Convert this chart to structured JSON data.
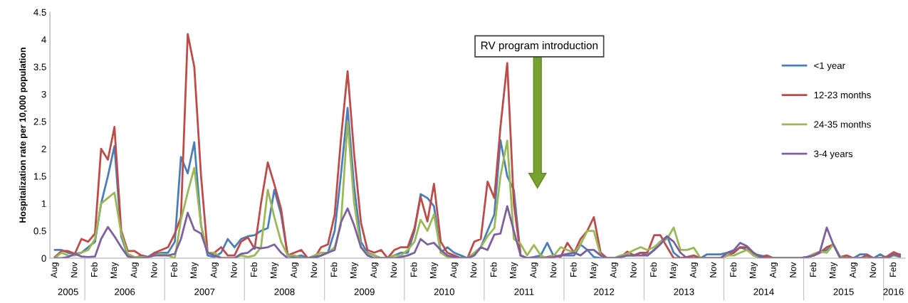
{
  "chart_data": {
    "type": "line",
    "ylabel": "Hospitalization rate per 10,000 population",
    "x": [
      "2005-08",
      "2005-09",
      "2005-10",
      "2005-11",
      "2005-12",
      "2006-01",
      "2006-02",
      "2006-03",
      "2006-04",
      "2006-05",
      "2006-06",
      "2006-07",
      "2006-08",
      "2006-09",
      "2006-10",
      "2006-11",
      "2006-12",
      "2007-01",
      "2007-02",
      "2007-03",
      "2007-04",
      "2007-05",
      "2007-06",
      "2007-07",
      "2007-08",
      "2007-09",
      "2007-10",
      "2007-11",
      "2007-12",
      "2008-01",
      "2008-02",
      "2008-03",
      "2008-04",
      "2008-05",
      "2008-06",
      "2008-07",
      "2008-08",
      "2008-09",
      "2008-10",
      "2008-11",
      "2008-12",
      "2009-01",
      "2009-02",
      "2009-03",
      "2009-04",
      "2009-05",
      "2009-06",
      "2009-07",
      "2009-08",
      "2009-09",
      "2009-10",
      "2009-11",
      "2009-12",
      "2010-01",
      "2010-02",
      "2010-03",
      "2010-04",
      "2010-05",
      "2010-06",
      "2010-07",
      "2010-08",
      "2010-09",
      "2010-10",
      "2010-11",
      "2010-12",
      "2011-01",
      "2011-02",
      "2011-03",
      "2011-04",
      "2011-05",
      "2011-06",
      "2011-07",
      "2011-08",
      "2011-09",
      "2011-10",
      "2011-11",
      "2011-12",
      "2012-01",
      "2012-02",
      "2012-03",
      "2012-04",
      "2012-05",
      "2012-06",
      "2012-07",
      "2012-08",
      "2012-09",
      "2012-10",
      "2012-11",
      "2012-12",
      "2013-01",
      "2013-02",
      "2013-03",
      "2013-04",
      "2013-05",
      "2013-06",
      "2013-07",
      "2013-08",
      "2013-09",
      "2013-10",
      "2013-11",
      "2013-12",
      "2014-01",
      "2014-02",
      "2014-03",
      "2014-04",
      "2014-05",
      "2014-06",
      "2014-07",
      "2014-08",
      "2014-09",
      "2014-10",
      "2014-11",
      "2014-12",
      "2015-01",
      "2015-02",
      "2015-03",
      "2015-04",
      "2015-05",
      "2015-06",
      "2015-07",
      "2015-08",
      "2015-09",
      "2015-10",
      "2015-11",
      "2015-12",
      "2016-01",
      "2016-02",
      "2016-03"
    ],
    "series": [
      {
        "name": "<1 year",
        "color": "#4a7ebb",
        "values": [
          0.15,
          0.15,
          0.1,
          0.08,
          0.1,
          0.2,
          0.3,
          1.0,
          1.5,
          2.05,
          0.4,
          0.05,
          0,
          0.05,
          0.02,
          0.08,
          0.1,
          0.1,
          0.3,
          1.85,
          1.55,
          2.12,
          0.6,
          0.05,
          0.02,
          0.1,
          0.35,
          0.2,
          0.35,
          0.4,
          0.42,
          0.5,
          0.55,
          1.25,
          0.8,
          0.05,
          0.02,
          0.05,
          0,
          0,
          0.05,
          0.1,
          0.5,
          1.5,
          2.75,
          1.3,
          0.3,
          0.1,
          0.05,
          0,
          0,
          0.05,
          0.1,
          0.1,
          0.5,
          1.17,
          1.1,
          0.95,
          0.1,
          0.2,
          0.1,
          0.05,
          0,
          0.05,
          0.2,
          0.5,
          0.8,
          2.16,
          1.5,
          1.25,
          0.05,
          0,
          0.02,
          0.05,
          0.28,
          0.02,
          0.05,
          0.05,
          0.05,
          0.25,
          0.15,
          0.02,
          0,
          0,
          0,
          0.02,
          0.05,
          0.05,
          0.1,
          0.05,
          0.15,
          0.3,
          0.4,
          0.1,
          0,
          0,
          0,
          0,
          0.07,
          0.07,
          0.07,
          0.1,
          0.12,
          0.2,
          0.15,
          0.08,
          0.05,
          0.02,
          0,
          0,
          0,
          0,
          0,
          0.02,
          0.05,
          0.1,
          0.15,
          0.25,
          0.02,
          0,
          0,
          0.07,
          0.07,
          0,
          0.07,
          0,
          0.07,
          0.07
        ]
      },
      {
        "name": "12-23 months",
        "color": "#be4b48",
        "values": [
          0.02,
          0.13,
          0.13,
          0.08,
          0.35,
          0.3,
          0.45,
          2.0,
          1.8,
          2.4,
          0.5,
          0.13,
          0.13,
          0.05,
          0.02,
          0.1,
          0.15,
          0.2,
          0.45,
          0.75,
          4.1,
          3.5,
          1.5,
          0.1,
          0.1,
          0.2,
          0.05,
          0.05,
          0.3,
          0.38,
          0.17,
          1.0,
          1.75,
          1.35,
          0.9,
          0.05,
          0.1,
          0.15,
          0,
          0,
          0.2,
          0.25,
          0.8,
          2.15,
          3.42,
          1.9,
          0.65,
          0.15,
          0.1,
          0.15,
          0,
          0.15,
          0.2,
          0.2,
          0.55,
          1.12,
          0.67,
          1.36,
          0.3,
          0.1,
          0.05,
          0,
          0,
          0.3,
          0.35,
          1.4,
          1.1,
          2.4,
          3.57,
          1.0,
          0.05,
          0,
          0,
          0,
          0.02,
          0.05,
          0.02,
          0.28,
          0.1,
          0.35,
          0.5,
          0.75,
          0.1,
          0,
          0,
          0.02,
          0.12,
          0.05,
          0.1,
          0.1,
          0.42,
          0.42,
          0.2,
          0,
          0,
          0.02,
          0.05,
          0,
          0,
          0,
          0,
          0.05,
          0.1,
          0.2,
          0.2,
          0.05,
          0.02,
          0.05,
          0,
          0,
          0,
          0,
          0,
          0.02,
          0.05,
          0.1,
          0.2,
          0.25,
          0.02,
          0.05,
          0,
          0,
          0.05,
          0,
          0,
          0.03,
          0.11,
          0.06
        ]
      },
      {
        "name": "24-35 months",
        "color": "#98b954",
        "values": [
          0,
          0.1,
          0.05,
          0.05,
          0.1,
          0.15,
          0.35,
          1.0,
          1.1,
          1.2,
          0.45,
          0.08,
          0.02,
          0.02,
          0.02,
          0.05,
          0.08,
          0.05,
          0,
          0.7,
          1.2,
          1.65,
          0.6,
          0.1,
          0.1,
          0,
          0,
          0,
          0.05,
          0.02,
          0.05,
          0.2,
          1.25,
          0.75,
          0.3,
          0.05,
          0.05,
          0,
          0,
          0.05,
          0.1,
          0.1,
          0.2,
          0.6,
          2.5,
          1.0,
          0.2,
          0.08,
          0.05,
          0,
          0,
          0.05,
          0.05,
          0.15,
          0.3,
          0.7,
          0.5,
          0.8,
          0.1,
          0.02,
          0,
          0,
          0,
          0.1,
          0.2,
          0.4,
          0.55,
          1.5,
          2.15,
          0.35,
          0.26,
          0.05,
          0.24,
          0.05,
          0,
          0.05,
          0.2,
          0.15,
          0.1,
          0.25,
          0.5,
          0.5,
          0.05,
          0,
          0,
          0.05,
          0.08,
          0.15,
          0.2,
          0.15,
          0.2,
          0.3,
          0.35,
          0.56,
          0.15,
          0.15,
          0.19,
          0,
          0,
          0,
          0,
          0.05,
          0.05,
          0.1,
          0.15,
          0.05,
          0,
          0,
          0,
          0,
          0,
          0,
          0,
          0.02,
          0.08,
          0.12,
          0.1,
          0.25,
          0.02,
          0,
          0,
          0,
          0,
          0,
          0,
          0,
          0.05,
          0.02
        ]
      },
      {
        "name": "3-4 years",
        "color": "#7d60a0",
        "values": [
          0,
          0,
          0.02,
          0.08,
          0.03,
          0.02,
          0.03,
          0.35,
          0.57,
          0.4,
          0.2,
          0.03,
          0,
          0,
          0.02,
          0.05,
          0.05,
          0.05,
          0.08,
          0.35,
          0.83,
          0.52,
          0.45,
          0.1,
          0.05,
          0,
          0,
          0,
          0.08,
          0.1,
          0.2,
          0.18,
          0.2,
          0.25,
          0.1,
          0,
          0,
          0,
          0,
          0.02,
          0.05,
          0.1,
          0.15,
          0.65,
          0.91,
          0.6,
          0.2,
          0.05,
          0,
          0,
          0,
          0,
          0.02,
          0.05,
          0.1,
          0.35,
          0.25,
          0.28,
          0.15,
          0.05,
          0.02,
          0,
          0,
          0.05,
          0.2,
          0.15,
          0.43,
          0.45,
          0.95,
          0.5,
          0.05,
          0,
          0,
          0,
          0,
          0.02,
          0.05,
          0.08,
          0.1,
          0.05,
          0.15,
          0.15,
          0.05,
          0,
          0,
          0.02,
          0.05,
          0.05,
          0.05,
          0.05,
          0.15,
          0.25,
          0.4,
          0.3,
          0.1,
          0,
          0,
          0,
          0,
          0,
          0,
          0.1,
          0.15,
          0.28,
          0.22,
          0.1,
          0.02,
          0,
          0,
          0,
          0,
          0,
          0,
          0.02,
          0.05,
          0.12,
          0.56,
          0.25,
          0,
          0,
          0,
          0,
          0,
          0,
          0,
          0,
          0.07,
          0.03
        ]
      }
    ],
    "xlim": [
      "2005-07-10",
      "2016-03-25"
    ],
    "xticks": [
      {
        "value": "2005-08",
        "label": "Aug"
      },
      {
        "value": "2005-11",
        "label": "Nov"
      },
      {
        "value": "2006-02",
        "label": "Feb"
      },
      {
        "value": "2006-05",
        "label": "May"
      },
      {
        "value": "2006-08",
        "label": "Aug"
      },
      {
        "value": "2006-11",
        "label": "Nov"
      },
      {
        "value": "2007-02",
        "label": "Feb"
      },
      {
        "value": "2007-05",
        "label": "May"
      },
      {
        "value": "2007-08",
        "label": "Aug"
      },
      {
        "value": "2007-11",
        "label": "Nov"
      },
      {
        "value": "2008-02",
        "label": "Feb"
      },
      {
        "value": "2008-05",
        "label": "May"
      },
      {
        "value": "2008-08",
        "label": "Aug"
      },
      {
        "value": "2008-11",
        "label": "Nov"
      },
      {
        "value": "2009-02",
        "label": "Feb"
      },
      {
        "value": "2009-05",
        "label": "May"
      },
      {
        "value": "2009-08",
        "label": "Aug"
      },
      {
        "value": "2009-11",
        "label": "Nov"
      },
      {
        "value": "2010-02",
        "label": "Feb"
      },
      {
        "value": "2010-05",
        "label": "May"
      },
      {
        "value": "2010-08",
        "label": "Aug"
      },
      {
        "value": "2010-11",
        "label": "Nov"
      },
      {
        "value": "2011-02",
        "label": "Feb"
      },
      {
        "value": "2011-05",
        "label": "May"
      },
      {
        "value": "2011-08",
        "label": "Aug"
      },
      {
        "value": "2011-11",
        "label": "Nov"
      },
      {
        "value": "2012-02",
        "label": "Feb"
      },
      {
        "value": "2012-05",
        "label": "May"
      },
      {
        "value": "2012-08",
        "label": "Aug"
      },
      {
        "value": "2012-11",
        "label": "Nov"
      },
      {
        "value": "2013-02",
        "label": "Feb"
      },
      {
        "value": "2013-05",
        "label": "May"
      },
      {
        "value": "2013-08",
        "label": "Aug"
      },
      {
        "value": "2013-11",
        "label": "Nov"
      },
      {
        "value": "2014-02",
        "label": "Feb"
      },
      {
        "value": "2014-05",
        "label": "May"
      },
      {
        "value": "2014-08",
        "label": "Aug"
      },
      {
        "value": "2014-11",
        "label": "Nov"
      },
      {
        "value": "2015-02",
        "label": "Feb"
      },
      {
        "value": "2015-05",
        "label": "May"
      },
      {
        "value": "2015-08",
        "label": "Aug"
      },
      {
        "value": "2015-11",
        "label": "Nov"
      },
      {
        "value": "2016-02",
        "label": "Feb"
      }
    ],
    "ylim": [
      0,
      4.5
    ],
    "yticks": [
      0,
      0.5,
      1,
      1.5,
      2,
      2.5,
      3,
      3.5,
      4,
      4.5
    ],
    "grid": false,
    "legend": "right",
    "annotations": [
      "2005",
      "2006",
      "2007",
      "2008",
      "2009",
      "2010",
      "2011",
      "2012",
      "2013",
      "2014",
      "2015",
      "2016",
      "RV program introduction"
    ]
  }
}
